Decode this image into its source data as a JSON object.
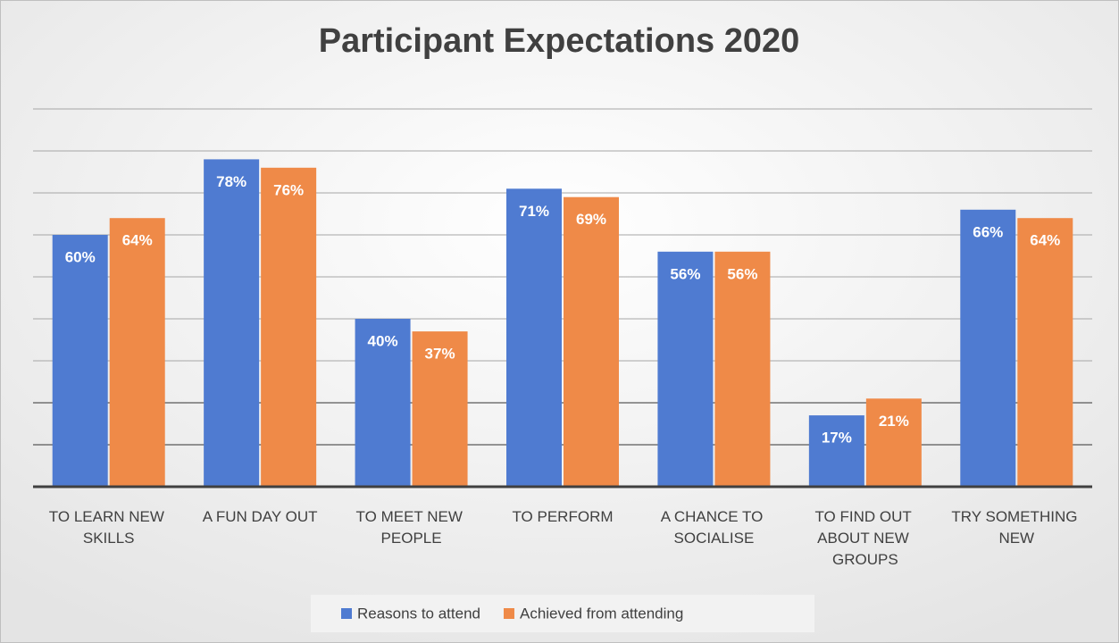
{
  "chart_data": {
    "type": "bar",
    "title": "Participant Expectations 2020",
    "categories": [
      "TO LEARN NEW SKILLS",
      "A FUN DAY OUT",
      "TO MEET NEW PEOPLE",
      "TO PERFORM",
      "A CHANCE TO SOCIALISE",
      "TO FIND OUT ABOUT NEW GROUPS",
      "TRY SOMETHING NEW"
    ],
    "series": [
      {
        "name": "Reasons to attend",
        "color": "#4f7bd1",
        "values": [
          60,
          78,
          40,
          71,
          56,
          17,
          66
        ],
        "value_labels": [
          "60%",
          "78%",
          "40%",
          "71%",
          "56%",
          "17%",
          "66%"
        ]
      },
      {
        "name": "Achieved from attending",
        "color": "#ef8a48",
        "values": [
          64,
          76,
          37,
          69,
          56,
          21,
          64
        ],
        "value_labels": [
          "64%",
          "76%",
          "37%",
          "69%",
          "56%",
          "21%",
          "64%"
        ]
      }
    ],
    "ylim": [
      0,
      90
    ],
    "yticks": [
      0,
      10,
      20,
      30,
      40,
      50,
      60,
      70,
      80,
      90
    ],
    "grid": true,
    "legend": "bottom"
  }
}
